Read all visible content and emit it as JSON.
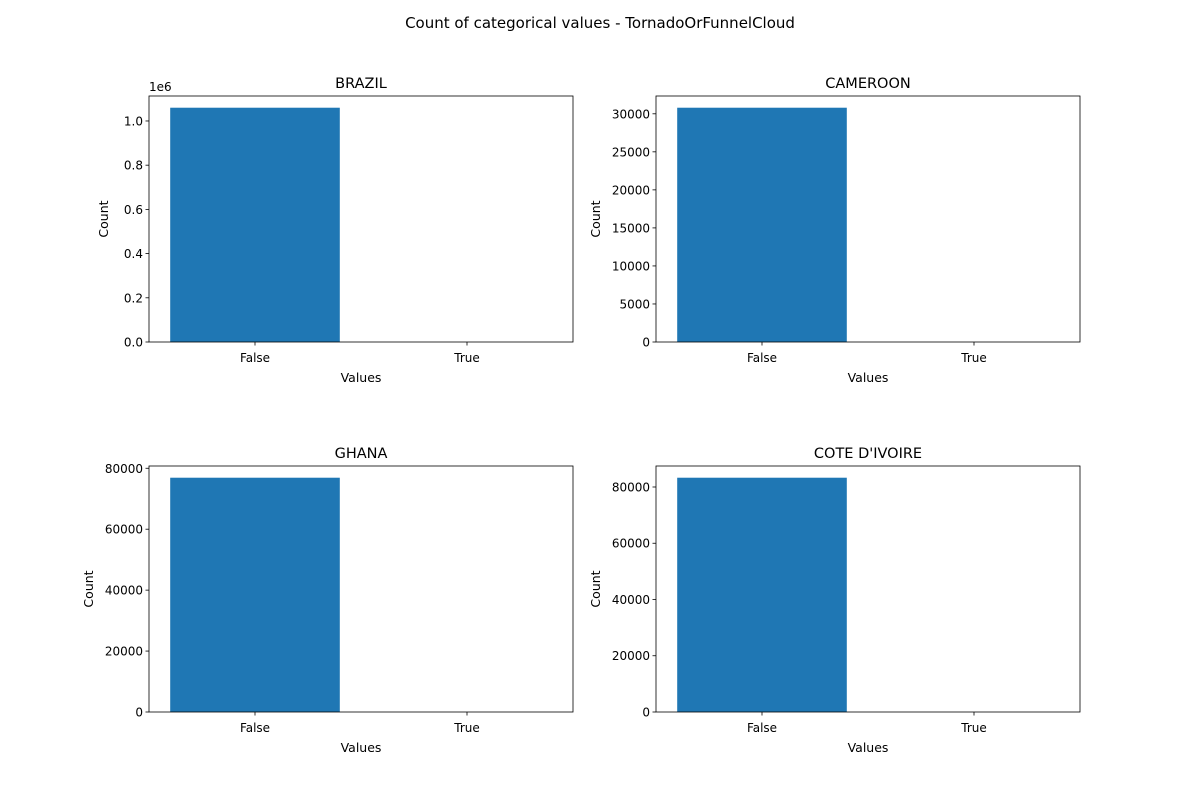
{
  "figure": {
    "title": "Count of categorical values - TornadoOrFunnelCloud",
    "bar_color": "#1f77b4"
  },
  "chart_data": [
    {
      "type": "bar",
      "title": "BRAZIL",
      "xlabel": "Values",
      "ylabel": "Count",
      "categories": [
        "False",
        "True"
      ],
      "values": [
        1060000,
        0
      ],
      "ylim": [
        0,
        1113000
      ],
      "yticks": [
        0,
        200000,
        400000,
        600000,
        800000,
        1000000
      ],
      "ytick_labels": [
        "0.0",
        "0.2",
        "0.4",
        "0.6",
        "0.8",
        "1.0"
      ],
      "offset_label": "1e6"
    },
    {
      "type": "bar",
      "title": "CAMEROON",
      "xlabel": "Values",
      "ylabel": "Count",
      "categories": [
        "False",
        "True"
      ],
      "values": [
        30800,
        0
      ],
      "ylim": [
        0,
        32340
      ],
      "yticks": [
        0,
        5000,
        10000,
        15000,
        20000,
        25000,
        30000
      ],
      "ytick_labels": [
        "0",
        "5000",
        "10000",
        "15000",
        "20000",
        "25000",
        "30000"
      ],
      "offset_label": ""
    },
    {
      "type": "bar",
      "title": "GHANA",
      "xlabel": "Values",
      "ylabel": "Count",
      "categories": [
        "False",
        "True"
      ],
      "values": [
        76900,
        0
      ],
      "ylim": [
        0,
        80745
      ],
      "yticks": [
        0,
        20000,
        40000,
        60000,
        80000
      ],
      "ytick_labels": [
        "0",
        "20000",
        "40000",
        "60000",
        "80000"
      ],
      "offset_label": ""
    },
    {
      "type": "bar",
      "title": "COTE D'IVOIRE",
      "xlabel": "Values",
      "ylabel": "Count",
      "categories": [
        "False",
        "True"
      ],
      "values": [
        83300,
        0
      ],
      "ylim": [
        0,
        87465
      ],
      "yticks": [
        0,
        20000,
        40000,
        60000,
        80000
      ],
      "ytick_labels": [
        "0",
        "20000",
        "40000",
        "60000",
        "80000"
      ],
      "offset_label": ""
    }
  ]
}
